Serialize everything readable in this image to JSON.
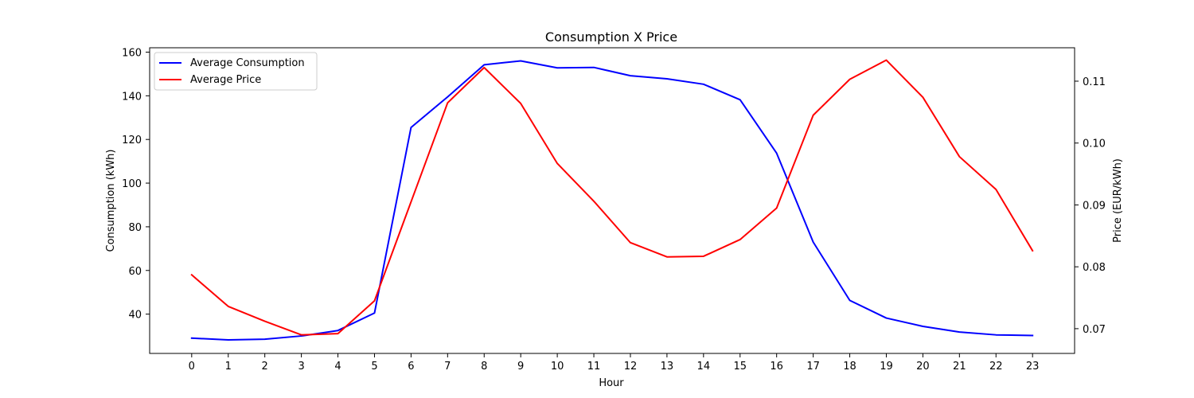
{
  "chart_data": {
    "type": "line",
    "title": "Consumption X Price",
    "xlabel": "Hour",
    "ylabel_left": "Consumption (kWh)",
    "ylabel_right": "Price (EUR/kWh)",
    "x": [
      0,
      1,
      2,
      3,
      4,
      5,
      6,
      7,
      8,
      9,
      10,
      11,
      12,
      13,
      14,
      15,
      16,
      17,
      18,
      19,
      20,
      21,
      22,
      23
    ],
    "x_ticks": [
      "0",
      "1",
      "2",
      "3",
      "4",
      "5",
      "6",
      "7",
      "8",
      "9",
      "10",
      "11",
      "12",
      "13",
      "14",
      "15",
      "16",
      "17",
      "18",
      "19",
      "20",
      "21",
      "22",
      "23"
    ],
    "ylim_left": [
      22,
      162
    ],
    "yticks_left": [
      40,
      60,
      80,
      100,
      120,
      140,
      160
    ],
    "ylim_right": [
      0.066,
      0.1154
    ],
    "yticks_right": [
      0.07,
      0.08,
      0.09,
      0.1,
      0.11
    ],
    "yticks_right_labels": [
      "0.07",
      "0.08",
      "0.09",
      "0.10",
      "0.11"
    ],
    "grid": false,
    "legend_position": "top-left",
    "series": [
      {
        "name": "Average Consumption",
        "axis": "left",
        "color": "#0000ff",
        "values": [
          29,
          28.2,
          28.5,
          30,
          32.5,
          40.5,
          125.5,
          139.5,
          154.2,
          156,
          152.8,
          153,
          149.2,
          147.8,
          145.3,
          138.2,
          113.7,
          73,
          46.3,
          38.2,
          34.4,
          31.8,
          30.5,
          30.2
        ]
      },
      {
        "name": "Average Price",
        "axis": "right",
        "color": "#ff0000",
        "values": [
          0.0787,
          0.0736,
          0.0712,
          0.069,
          0.0692,
          0.0745,
          0.0905,
          0.1065,
          0.1122,
          0.1064,
          0.0967,
          0.0906,
          0.0839,
          0.0816,
          0.0817,
          0.0844,
          0.0895,
          0.1045,
          0.1103,
          0.1134,
          0.1074,
          0.0978,
          0.0925,
          0.0826
        ]
      }
    ]
  }
}
